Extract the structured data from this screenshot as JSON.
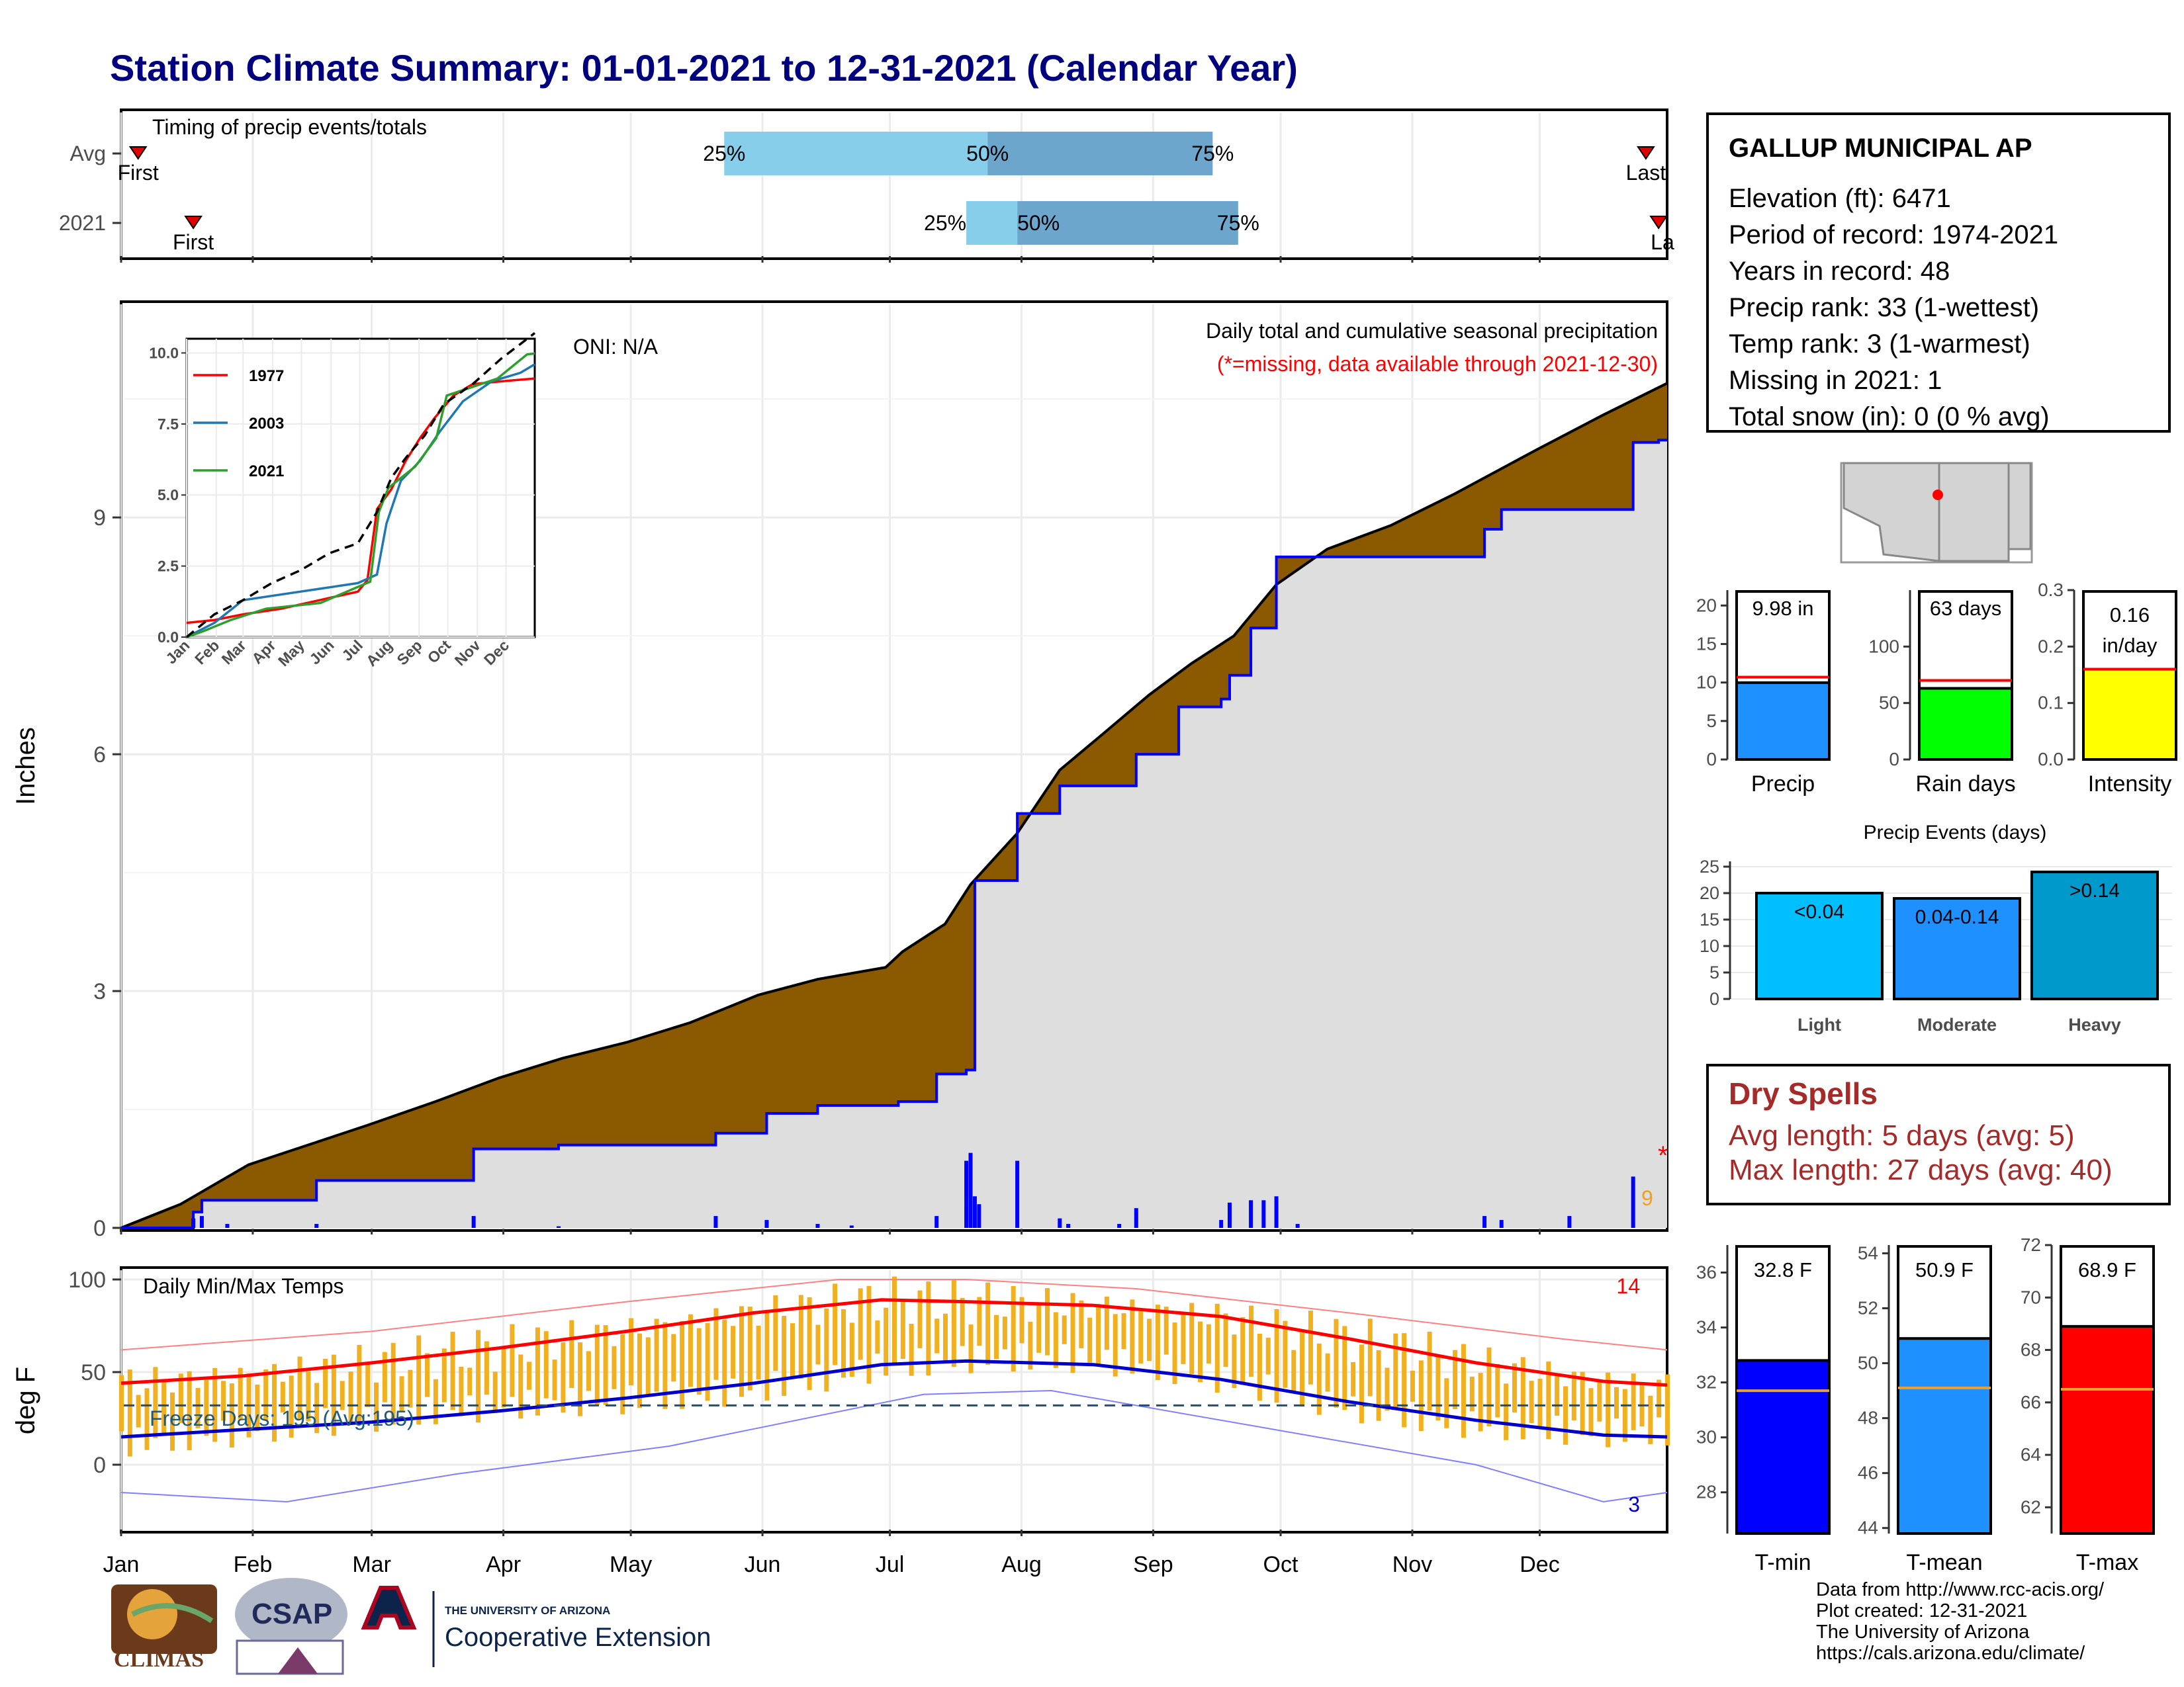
{
  "title": "Station Climate Summary: 01-01-2021 to 12-31-2021 (Calendar Year)",
  "station": {
    "name": "GALLUP MUNICIPAL AP",
    "lines": [
      "Elevation (ft): 6471",
      "Period of record: 1974-2021",
      "Years in record: 48",
      "Precip rank: 33 (1-wettest)",
      "Temp rank: 3 (1-warmest)",
      "Missing in 2021: 1",
      "Total snow (in): 0 (0 % avg)"
    ]
  },
  "dry_spells": {
    "title": "Dry Spells",
    "avg": "Avg length: 5 days (avg: 5)",
    "max": "Max length: 27 days (avg: 40)"
  },
  "credits": [
    "Data from http://www.rcc-acis.org/",
    "Plot created: 12-31-2021",
    "The University of Arizona",
    "https://cals.arizona.edu/climate/"
  ],
  "logos": {
    "climas": "CLIMAS",
    "csap": "CSAP",
    "ua_small": "THE UNIVERSITY OF ARIZONA",
    "ua_large": "Cooperative Extension"
  },
  "colors": {
    "title": "#00007f",
    "cum_avg_fill": "#8b5a00",
    "cum_2021_line": "#0000ff",
    "bar_light": "#00bfff",
    "bar_moderate": "#1e90ff",
    "bar_heavy": "#0099cc",
    "temp_bar": "#f0b020",
    "tmax_line": "#ff0000",
    "tmin_line": "#0000cc"
  },
  "chart_data": [
    {
      "type": "bar",
      "name": "timing",
      "title": "Timing of precip events/totals",
      "rows": [
        {
          "label": "Avg",
          "first": "First",
          "last": "Last",
          "q25": "25%",
          "q50": "50%",
          "q75": "75%",
          "q25_day": 143,
          "q50_day": 205,
          "q75_day": 258,
          "first_day": 5,
          "last_day": 360
        },
        {
          "label": "2021",
          "first": "First",
          "last": "La",
          "q25": "25%",
          "q50": "50%",
          "q75": "75%",
          "q25_day": 200,
          "q50_day": 212,
          "q75_day": 264,
          "first_day": 18,
          "last_day": 363
        }
      ],
      "x_ticks": [
        "Jan",
        "Feb",
        "Mar",
        "Apr",
        "May",
        "Jun",
        "Jul",
        "Aug",
        "Sep",
        "Oct",
        "Nov",
        "Dec"
      ]
    },
    {
      "type": "area",
      "name": "cumulative-precip",
      "title": "Daily total and cumulative seasonal precipitation",
      "subtitle": "(*=missing, data available through 2021-12-30)",
      "oni": "ONI: N/A",
      "ylabel": "Inches",
      "ylim": [
        0,
        11.7
      ],
      "yticks": [
        "0",
        "3",
        "6",
        "9"
      ],
      "x_ticks": [
        "Jan",
        "Feb",
        "Mar",
        "Apr",
        "May",
        "Jun",
        "Jul",
        "Aug",
        "Sep",
        "Oct",
        "Nov",
        "Dec"
      ],
      "missing_marker": "*",
      "missing_count": "9",
      "avg_cum": {
        "x": [
          1,
          15,
          31,
          45,
          59,
          75,
          90,
          105,
          120,
          135,
          151,
          165,
          181,
          185,
          195,
          201,
          212,
          222,
          232,
          243,
          253,
          263,
          273,
          285,
          300,
          315,
          334,
          350,
          365
        ],
        "y": [
          0.0,
          0.3,
          0.8,
          1.05,
          1.3,
          1.6,
          1.9,
          2.15,
          2.35,
          2.6,
          2.95,
          3.15,
          3.3,
          3.5,
          3.85,
          4.35,
          5.0,
          5.8,
          6.25,
          6.75,
          7.15,
          7.5,
          8.15,
          8.6,
          8.9,
          9.3,
          9.85,
          10.3,
          10.7
        ]
      },
      "cum_2021": {
        "x": [
          1,
          18,
          20,
          47,
          62,
          84,
          104,
          141,
          153,
          165,
          184,
          193,
          200,
          202,
          212,
          222,
          240,
          250,
          260,
          262,
          267,
          273,
          278,
          290,
          322,
          326,
          356,
          357,
          363,
          365
        ],
        "y": [
          0.0,
          0.2,
          0.35,
          0.6,
          0.6,
          1.0,
          1.05,
          1.2,
          1.45,
          1.55,
          1.6,
          1.95,
          2.0,
          4.4,
          5.25,
          5.6,
          6.0,
          6.6,
          6.7,
          7.0,
          7.6,
          8.5,
          8.5,
          8.5,
          8.85,
          9.1,
          9.1,
          9.95,
          9.98,
          9.98
        ]
      },
      "daily_bars": [
        {
          "day": 18,
          "v": 0.12
        },
        {
          "day": 20,
          "v": 0.15
        },
        {
          "day": 26,
          "v": 0.05
        },
        {
          "day": 47,
          "v": 0.05
        },
        {
          "day": 84,
          "v": 0.15
        },
        {
          "day": 104,
          "v": 0.02
        },
        {
          "day": 141,
          "v": 0.15
        },
        {
          "day": 153,
          "v": 0.1
        },
        {
          "day": 165,
          "v": 0.05
        },
        {
          "day": 173,
          "v": 0.03
        },
        {
          "day": 193,
          "v": 0.15
        },
        {
          "day": 200,
          "v": 0.85
        },
        {
          "day": 201,
          "v": 0.95
        },
        {
          "day": 202,
          "v": 0.4
        },
        {
          "day": 203,
          "v": 0.3
        },
        {
          "day": 212,
          "v": 0.85
        },
        {
          "day": 222,
          "v": 0.12
        },
        {
          "day": 224,
          "v": 0.05
        },
        {
          "day": 236,
          "v": 0.05
        },
        {
          "day": 240,
          "v": 0.25
        },
        {
          "day": 260,
          "v": 0.1
        },
        {
          "day": 262,
          "v": 0.32
        },
        {
          "day": 267,
          "v": 0.35
        },
        {
          "day": 270,
          "v": 0.35
        },
        {
          "day": 273,
          "v": 0.4
        },
        {
          "day": 278,
          "v": 0.05
        },
        {
          "day": 322,
          "v": 0.15
        },
        {
          "day": 326,
          "v": 0.1
        },
        {
          "day": 342,
          "v": 0.15
        },
        {
          "day": 357,
          "v": 0.65
        }
      ],
      "inset": {
        "yticks": [
          "0.0",
          "2.5",
          "5.0",
          "7.5",
          "10.0"
        ],
        "ylim": [
          0,
          10.5
        ],
        "x_ticks": [
          "Jan",
          "Feb",
          "Mar",
          "Apr",
          "May",
          "Jun",
          "Jul",
          "Aug",
          "Sep",
          "Oct",
          "Nov",
          "Dec"
        ],
        "series": [
          {
            "name": "1977",
            "color": "#ff0000",
            "x": [
              1,
              30,
              60,
              100,
              140,
              180,
              190,
              200,
              215,
              230,
              245,
              260,
              280,
              300,
              330,
              365
            ],
            "y": [
              0.5,
              0.6,
              0.8,
              1.0,
              1.3,
              1.6,
              2.0,
              4.5,
              5.2,
              6.2,
              7.0,
              7.7,
              8.5,
              8.9,
              9.0,
              9.1
            ]
          },
          {
            "name": "2003",
            "color": "#1f77b4",
            "x": [
              1,
              30,
              60,
              100,
              140,
              180,
              200,
              210,
              225,
              245,
              265,
              290,
              320,
              350,
              365
            ],
            "y": [
              0.0,
              0.5,
              1.3,
              1.5,
              1.7,
              1.9,
              2.2,
              4.0,
              5.5,
              6.2,
              7.2,
              8.3,
              9.0,
              9.3,
              9.6
            ]
          },
          {
            "name": "2021",
            "color": "#2ca02c",
            "x": [
              1,
              18,
              47,
              84,
              141,
              165,
              193,
              202,
              212,
              240,
              262,
              273,
              326,
              357,
              365
            ],
            "y": [
              0.0,
              0.2,
              0.6,
              1.0,
              1.2,
              1.55,
              1.95,
              4.4,
              5.25,
              6.0,
              7.0,
              8.5,
              9.1,
              9.95,
              9.98
            ]
          }
        ],
        "avg_dashed": {
          "x": [
            1,
            30,
            60,
            90,
            120,
            150,
            180,
            200,
            215,
            230,
            250,
            270,
            300,
            330,
            365
          ],
          "y": [
            0.0,
            0.8,
            1.3,
            1.9,
            2.35,
            2.95,
            3.3,
            4.4,
            5.6,
            6.3,
            7.1,
            8.2,
            8.9,
            9.8,
            10.7
          ]
        }
      }
    },
    {
      "type": "bar",
      "name": "precip-gauges",
      "gauges": [
        {
          "label": "Precip",
          "value_text": "9.98 in",
          "value": 9.98,
          "avg": 10.7,
          "ylim": [
            0,
            22
          ],
          "yticks": [
            "0",
            "5",
            "10",
            "15",
            "20"
          ],
          "ytick_vals": [
            0,
            5,
            10,
            15,
            20
          ],
          "color": "#1e90ff"
        },
        {
          "label": "Rain days",
          "value_text": "63 days",
          "value": 63,
          "avg": 70,
          "ylim": [
            0,
            150
          ],
          "yticks": [
            "0",
            "50",
            "100"
          ],
          "ytick_vals": [
            0,
            50,
            100
          ],
          "color": "#00ff00"
        },
        {
          "label": "Intensity",
          "value_text": "0.16 in/day",
          "value_text_lines": [
            "0.16",
            "in/day"
          ],
          "value": 0.16,
          "avg": 0.16,
          "ylim": [
            0,
            0.3
          ],
          "yticks": [
            "0.0",
            "0.1",
            "0.2",
            "0.3"
          ],
          "ytick_vals": [
            0,
            0.1,
            0.2,
            0.3
          ],
          "color": "#ffff00"
        }
      ]
    },
    {
      "type": "bar",
      "name": "precip-events",
      "title": "Precip Events (days)",
      "categories": [
        "Light",
        "Moderate",
        "Heavy"
      ],
      "bar_labels": [
        "<0.04",
        "0.04-0.14",
        ">0.14"
      ],
      "values": [
        20,
        19,
        24
      ],
      "ylim": [
        0,
        26
      ],
      "yticks": [
        "0",
        "5",
        "10",
        "15",
        "20",
        "25"
      ]
    },
    {
      "type": "line",
      "name": "daily-temps",
      "title": "Daily Min/Max Temps",
      "ylabel": "deg F",
      "ylim": [
        -35,
        105
      ],
      "yticks": [
        "0",
        "50",
        "100"
      ],
      "freeze_label": "Freeze Days: 195 (Avg:195)",
      "freeze_line": 32,
      "record_high_count": "14",
      "record_low_count": "3",
      "x_ticks": [
        "Jan",
        "Feb",
        "Mar",
        "Apr",
        "May",
        "Jun",
        "Jul",
        "Aug",
        "Sep",
        "Oct",
        "Nov",
        "Dec"
      ],
      "avg_max": {
        "x": [
          1,
          30,
          60,
          90,
          120,
          150,
          180,
          200,
          230,
          260,
          290,
          320,
          350,
          365
        ],
        "y": [
          44,
          48,
          55,
          63,
          72,
          82,
          89,
          88,
          86,
          80,
          68,
          55,
          45,
          43
        ]
      },
      "avg_min": {
        "x": [
          1,
          30,
          60,
          90,
          120,
          150,
          180,
          200,
          230,
          260,
          290,
          320,
          350,
          365
        ],
        "y": [
          15,
          19,
          23,
          29,
          36,
          44,
          54,
          56,
          54,
          46,
          34,
          24,
          16,
          15
        ]
      },
      "rec_max": {
        "x": [
          1,
          60,
          120,
          170,
          200,
          240,
          290,
          340,
          365
        ],
        "y": [
          62,
          72,
          88,
          100,
          100,
          95,
          82,
          68,
          62
        ]
      },
      "rec_min": {
        "x": [
          1,
          40,
          80,
          130,
          190,
          220,
          270,
          320,
          350,
          365
        ],
        "y": [
          -15,
          -20,
          -5,
          10,
          38,
          40,
          20,
          0,
          -20,
          -15
        ]
      }
    },
    {
      "type": "bar",
      "name": "temp-gauges",
      "gauges": [
        {
          "label": "T-min",
          "value_text": "32.8 F",
          "value": 32.8,
          "avg": 31.7,
          "ylim": [
            26.5,
            37
          ],
          "yticks": [
            "28",
            "30",
            "32",
            "34",
            "36"
          ],
          "ytick_vals": [
            28,
            30,
            32,
            34,
            36
          ],
          "color": "#0000ff"
        },
        {
          "label": "T-mean",
          "value_text": "50.9 F",
          "value": 50.9,
          "avg": 49.1,
          "ylim": [
            43.8,
            54.3
          ],
          "yticks": [
            "44",
            "46",
            "48",
            "50",
            "52",
            "54"
          ],
          "ytick_vals": [
            44,
            46,
            48,
            50,
            52,
            54
          ],
          "color": "#1e90ff"
        },
        {
          "label": "T-max",
          "value_text": "68.9 F",
          "value": 68.9,
          "avg": 66.5,
          "ylim": [
            61,
            72
          ],
          "yticks": [
            "62",
            "64",
            "66",
            "68",
            "70",
            "72"
          ],
          "ytick_vals": [
            62,
            64,
            66,
            68,
            70,
            72
          ],
          "color": "#ff0000"
        }
      ]
    }
  ]
}
